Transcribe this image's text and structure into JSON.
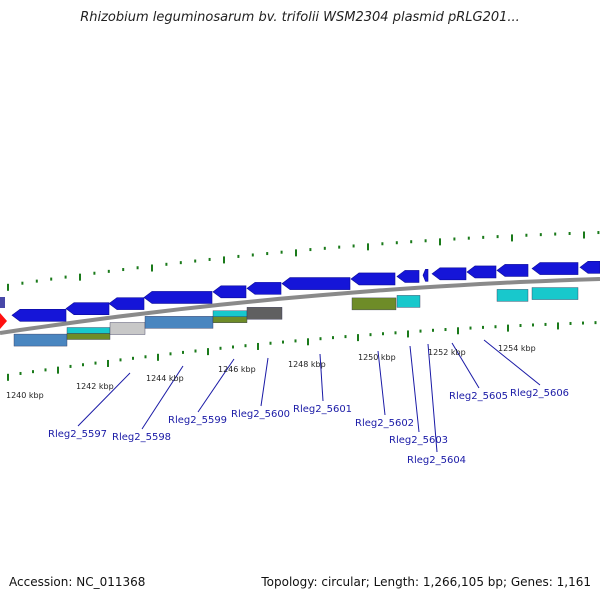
{
  "title": "Rhizobium leguminosarum bv. trifolii WSM2304 plasmid pRLG201...",
  "footer": {
    "accession": "Accession: NC_011368",
    "summary": "Topology: circular; Length: 1,266,105 bp; Genes: 1,161"
  },
  "ruler": [
    "1240 kbp",
    "1242 kbp",
    "1244 kbp",
    "1246 kbp",
    "1248 kbp",
    "1250 kbp",
    "1252 kbp",
    "1254 kbp"
  ],
  "genes": [
    {
      "label": "Rleg2_5597"
    },
    {
      "label": "Rleg2_5598"
    },
    {
      "label": "Rleg2_5599"
    },
    {
      "label": "Rleg2_5600"
    },
    {
      "label": "Rleg2_5601"
    },
    {
      "label": "Rleg2_5602"
    },
    {
      "label": "Rleg2_5603"
    },
    {
      "label": "Rleg2_5604"
    },
    {
      "label": "Rleg2_5605"
    },
    {
      "label": "Rleg2_5606"
    }
  ],
  "colors": {
    "cds": "#1515d8",
    "backbone": "#8a8a8a",
    "tick": "#1a7a1a",
    "steel": "#4a86c0",
    "olive": "#6e8c28",
    "cyan": "#18c8cc",
    "silver": "#c8c8c8",
    "dark": "#606060",
    "label": "#1a1aa6",
    "marker": "#ff1010"
  }
}
